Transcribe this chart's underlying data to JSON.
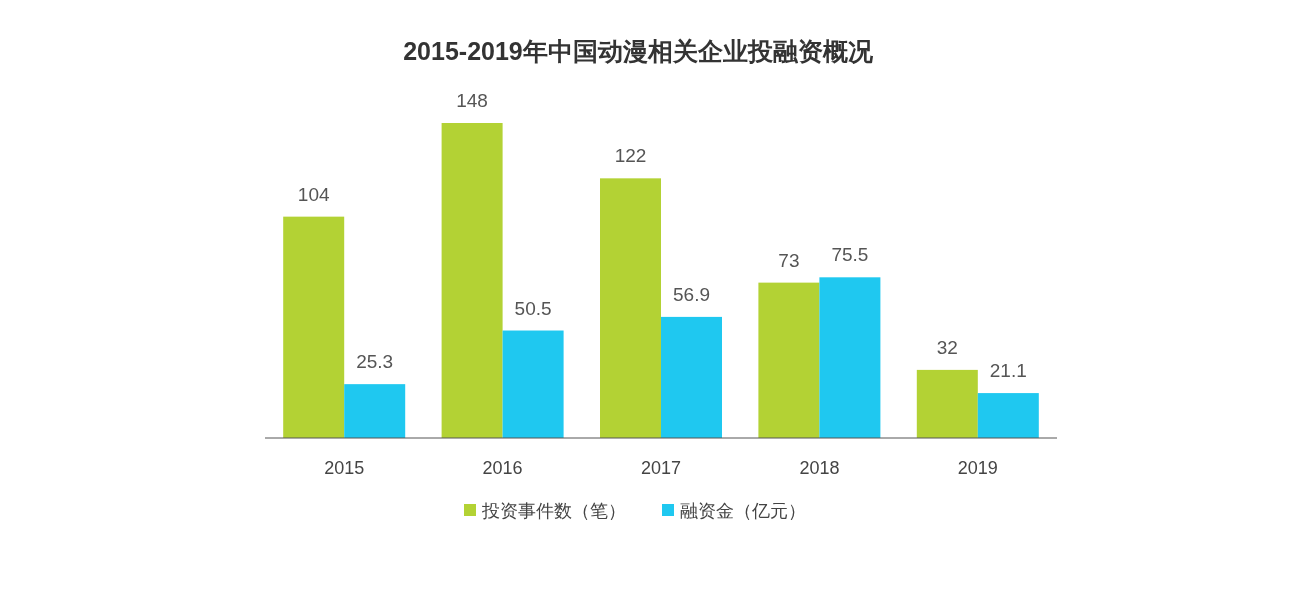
{
  "chart_data": {
    "type": "bar",
    "title": "2015-2019年中国动漫相关企业投融资概况",
    "categories": [
      "2015",
      "2016",
      "2017",
      "2018",
      "2019"
    ],
    "series": [
      {
        "name": "投资事件数（笔）",
        "color": "#b3d234",
        "values": [
          104,
          148,
          122,
          73,
          32
        ]
      },
      {
        "name": "融资金（亿元）",
        "color": "#1fc8f0",
        "values": [
          25.3,
          50.5,
          56.9,
          75.5,
          21.1
        ]
      }
    ],
    "data_labels": true,
    "legend": "bottom"
  }
}
